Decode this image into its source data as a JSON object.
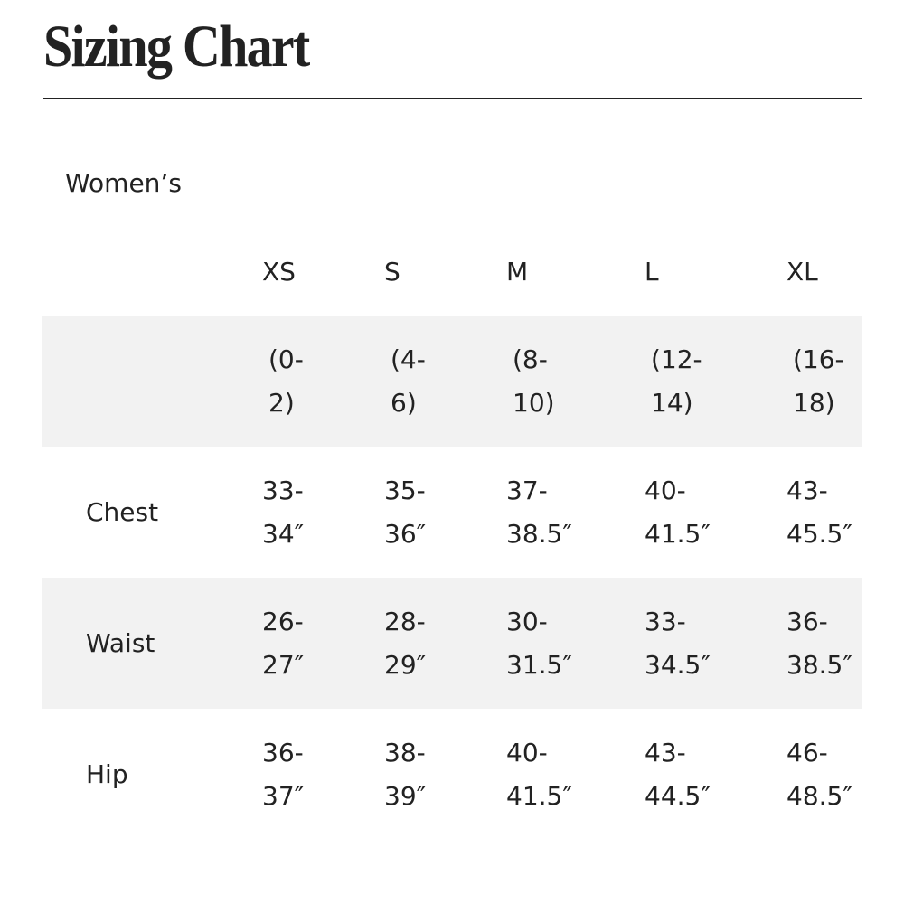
{
  "header": {
    "title": "Sizing Chart"
  },
  "section": "Women’s",
  "table": {
    "columns": [
      "XS",
      "S",
      "M",
      "L",
      "XL"
    ],
    "size_ranges": [
      "(0-2)",
      "(4-6)",
      "(8-10)",
      "(12-14)",
      "(16-18)"
    ],
    "rows": [
      {
        "label": "Chest",
        "values": [
          "33-34″",
          "35-36″",
          "37-38.5″",
          "40-41.5″",
          "43-45.5″"
        ]
      },
      {
        "label": "Waist",
        "values": [
          "26-27″",
          "28-29″",
          "30-31.5″",
          "33-34.5″",
          "36-38.5″"
        ]
      },
      {
        "label": "Hip",
        "values": [
          "36-37″",
          "38-39″",
          "40-41.5″",
          "43-44.5″",
          "46-48.5″"
        ]
      }
    ]
  }
}
